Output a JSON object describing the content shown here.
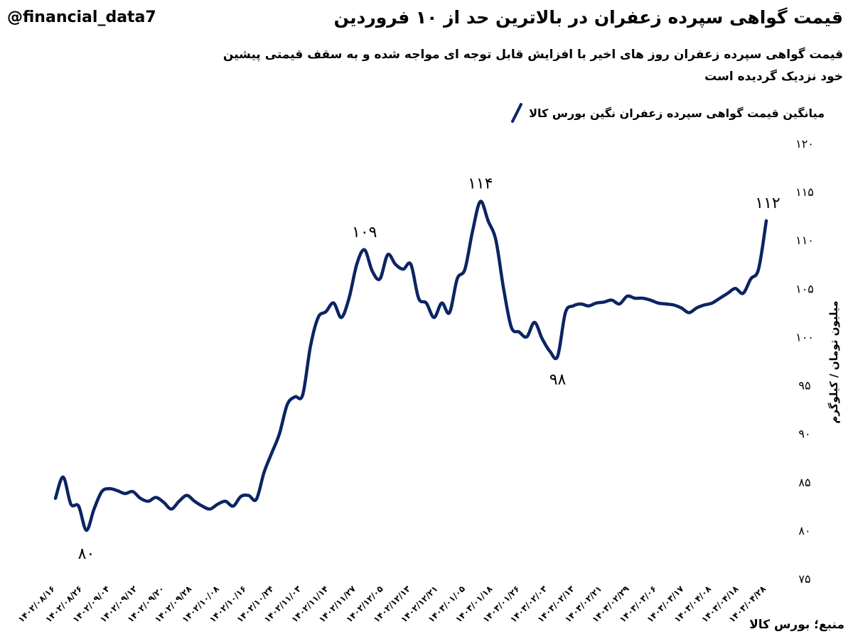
{
  "header": {
    "handle": "@financial_data7",
    "title": "قیمت گواهی سپرده زعفران در بالاترین حد از ۱۰ فروردین",
    "subtitle": "قیمت گواهی سپرده زعفران روز های اخیر با افزایش قابل توجه ای مواجه شده و به سقف قیمتی پیشین خود نزدیک گردیده است"
  },
  "source": "منبع؛ بورس کالا",
  "colors": {
    "line": "#0b2463",
    "legend_swatch": "#0b2463"
  },
  "chart_data": {
    "type": "line",
    "title": "قیمت گواهی سپرده زعفران در بالاترین حد از ۱۰ فروردین",
    "xlabel": "",
    "ylabel": "میلیون تومان / کیلوگرم",
    "ylim": [
      75,
      120
    ],
    "yticks": [
      "۷۵",
      "۸۰",
      "۸۵",
      "۹۰",
      "۹۵",
      "۱۰۰",
      "۱۰۵",
      "۱۱۰",
      "۱۱۵",
      "۱۲۰"
    ],
    "yticks_values": [
      75,
      80,
      85,
      90,
      95,
      100,
      105,
      110,
      115,
      120
    ],
    "grid": false,
    "legend_position": "top-right",
    "x_tick_labels": [
      "۱۴۰۲/۰۸/۱۶",
      "۱۴۰۲/۰۸/۲۶",
      "۱۴۰۲/۰۹/۰۴",
      "۱۴۰۲/۰۹/۱۲",
      "۱۴۰۲/۰۹/۲۰",
      "۱۴۰۲/۰۹/۲۸",
      "۱۴۰۲/۱۰/۰۸",
      "۱۴۰۲/۱۰/۱۶",
      "۱۴۰۲/۱۰/۲۴",
      "۱۴۰۲/۱۱/۰۳",
      "۱۴۰۲/۱۱/۱۴",
      "۱۴۰۲/۱۱/۲۷",
      "۱۴۰۲/۱۲/۰۵",
      "۱۴۰۲/۱۲/۱۳",
      "۱۴۰۲/۱۲/۲۱",
      "۱۴۰۳/۰۱/۰۵",
      "۱۴۰۳/۰۱/۱۸",
      "۱۴۰۳/۰۱/۲۶",
      "۱۴۰۳/۰۲/۰۳",
      "۱۴۰۳/۰۲/۱۳",
      "۱۴۰۳/۰۲/۲۱",
      "۱۴۰۳/۰۲/۲۹",
      "۱۴۰۳/۰۳/۰۶",
      "۱۴۰۳/۰۳/۱۷",
      "۱۴۰۳/۰۴/۰۸",
      "۱۴۰۳/۰۴/۱۸",
      "۱۴۰۳/۰۴/۲۸"
    ],
    "series": [
      {
        "name": "میانگین قیمت گواهی سپرده زعفران نگین بورس کالا",
        "values": [
          83.3,
          85.5,
          82.7,
          82.5,
          80.0,
          82.2,
          84.0,
          84.3,
          84.1,
          83.8,
          84.0,
          83.3,
          83.0,
          83.4,
          82.9,
          82.2,
          83.0,
          83.6,
          83.0,
          82.5,
          82.2,
          82.7,
          83.0,
          82.5,
          83.5,
          83.6,
          83.2,
          86.0,
          88.0,
          90.0,
          93.0,
          93.8,
          94.0,
          99.0,
          102.0,
          102.6,
          103.5,
          102.0,
          104.0,
          107.5,
          109.0,
          106.8,
          106.0,
          108.5,
          107.5,
          107.0,
          107.5,
          104.0,
          103.5,
          102.0,
          103.5,
          102.5,
          106.0,
          107.0,
          111.0,
          114.0,
          112.0,
          110.0,
          105.0,
          101.0,
          100.5,
          100.0,
          101.5,
          99.8,
          98.5,
          98.0,
          102.5,
          103.2,
          103.4,
          103.2,
          103.5,
          103.6,
          103.8,
          103.4,
          104.2,
          104.0,
          104.0,
          103.8,
          103.5,
          103.4,
          103.3,
          103.0,
          102.5,
          103.0,
          103.3,
          103.5,
          104.0,
          104.5,
          105.0,
          104.5,
          106.0,
          107.0,
          112.0
        ]
      }
    ],
    "annotations": [
      {
        "text": "۸۰",
        "point_index": 4,
        "value": 80
      },
      {
        "text": "۱۰۹",
        "point_index": 40,
        "value": 109
      },
      {
        "text": "۱۱۴",
        "point_index": 55,
        "value": 114
      },
      {
        "text": "۹۸",
        "point_index": 65,
        "value": 98
      },
      {
        "text": "۱۱۲",
        "point_index": 92,
        "value": 112
      }
    ]
  }
}
